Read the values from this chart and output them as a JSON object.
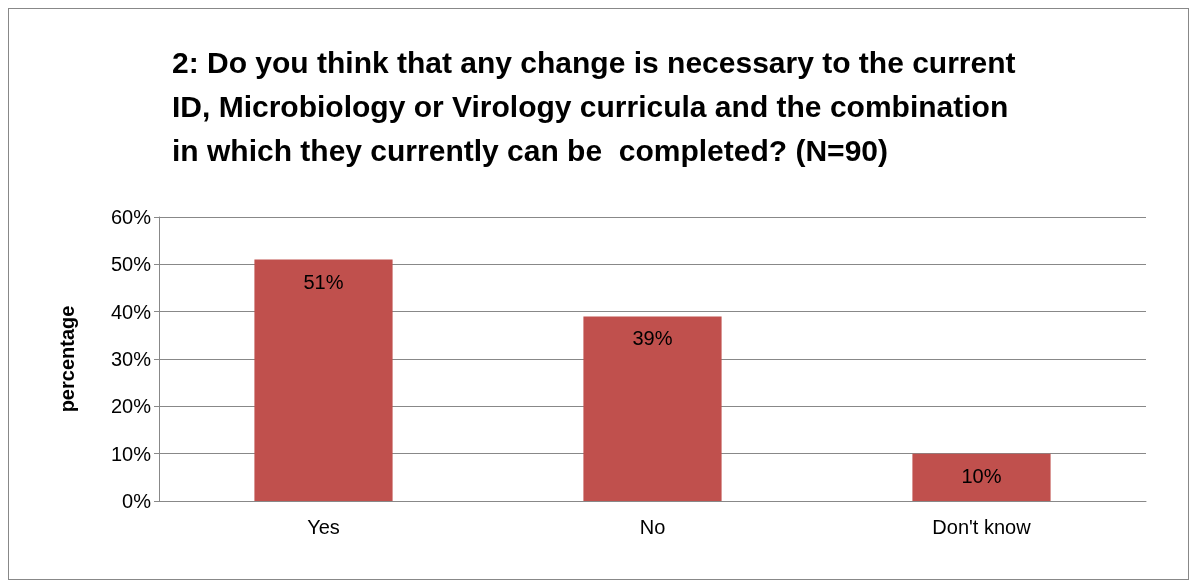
{
  "chart_data": {
    "type": "bar",
    "title": "2: Do you think that any change is necessary to the current\nID, Microbiology or Virology curricula and the combination\nin which they currently can be  completed? (N=90)",
    "ylabel": "percentage",
    "categories": [
      "Yes",
      "No",
      "Don't know"
    ],
    "values": [
      51,
      39,
      10
    ],
    "color": "#c0504d",
    "value_labels": [
      "51%",
      "39%",
      "10%"
    ],
    "ylim": [
      0,
      60
    ],
    "yticks": [
      {
        "value": 0,
        "label": "0%"
      },
      {
        "value": 10,
        "label": "10%"
      },
      {
        "value": 20,
        "label": "20%"
      },
      {
        "value": 30,
        "label": "30%"
      },
      {
        "value": 40,
        "label": "40%"
      },
      {
        "value": 50,
        "label": "50%"
      },
      {
        "value": 60,
        "label": "60%"
      }
    ],
    "grid": "y"
  }
}
